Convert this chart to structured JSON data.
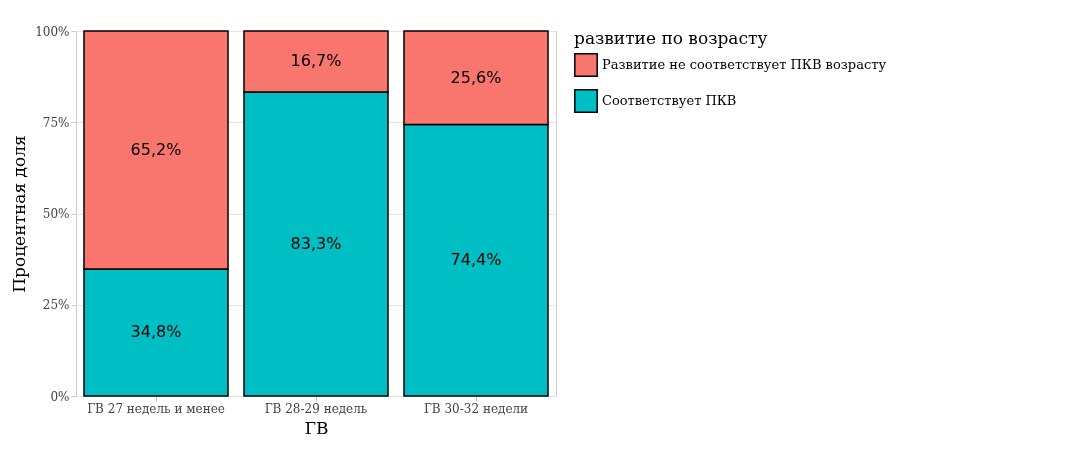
{
  "chart_data": {
    "type": "bar",
    "stacked": true,
    "xlabel": "ГВ",
    "ylabel": "Процентная доля",
    "legend_title": "развитие по возрасту",
    "legend": "right",
    "grid": true,
    "categories": [
      "ГВ 27 недель и менее",
      "ГВ 28-29 недель",
      "ГВ 30-32 недели"
    ],
    "ylim": [
      0,
      100
    ],
    "yticks": [
      {
        "value": 0,
        "label": "0%"
      },
      {
        "value": 25,
        "label": "25%"
      },
      {
        "value": 50,
        "label": "50%"
      },
      {
        "value": 75,
        "label": "75%"
      },
      {
        "value": 100,
        "label": "100%"
      }
    ],
    "series": [
      {
        "name": "Соответствует ПКВ",
        "color": "#00bfc4",
        "values": [
          34.8,
          83.3,
          74.4
        ],
        "value_labels": [
          "34,8%",
          "83,3%",
          "74,4%"
        ]
      },
      {
        "name": "Развитие не соответствует ПКВ возрасту",
        "color": "#f8766d",
        "values": [
          65.2,
          16.7,
          25.6
        ],
        "value_labels": [
          "65,2%",
          "16,7%",
          "25,6%"
        ]
      }
    ]
  }
}
